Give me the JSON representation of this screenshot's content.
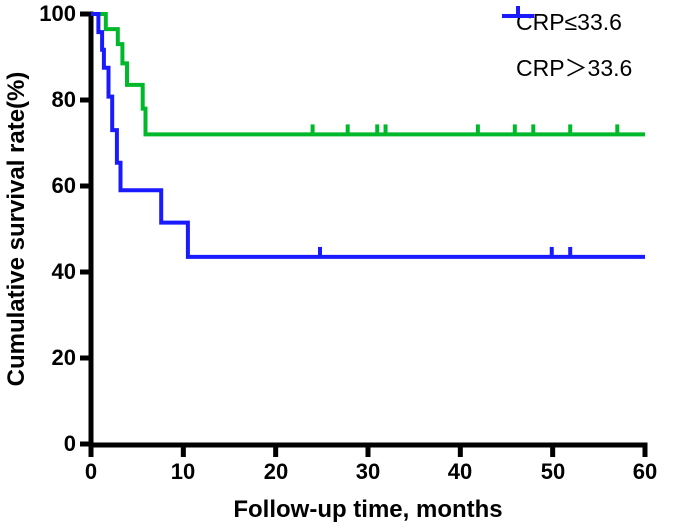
{
  "chart_data": {
    "type": "line",
    "subtype": "kaplan-meier-step-curves",
    "title": "",
    "xlabel": "Follow-up time, months",
    "ylabel": "Cumulative survival rate(%)",
    "xlim": [
      0,
      60
    ],
    "ylim": [
      0,
      100
    ],
    "x_ticks": [
      0,
      10,
      20,
      30,
      40,
      50,
      60
    ],
    "y_ticks": [
      0,
      20,
      40,
      60,
      80,
      100
    ],
    "x_tick_labels": [
      "0",
      "10",
      "20",
      "30",
      "40",
      "50",
      "60"
    ],
    "y_tick_labels": [
      "0",
      "20",
      "40",
      "60",
      "80",
      "100"
    ],
    "grid": false,
    "legend_position": "top-right",
    "axis_color": "#000000",
    "series": [
      {
        "name": "CRP≤33.6",
        "color": "#00b92b",
        "final_survival_pct": 72,
        "steps": [
          [
            0,
            100
          ],
          [
            1.6,
            100
          ],
          [
            1.6,
            96.5
          ],
          [
            2.9,
            96.5
          ],
          [
            2.9,
            93
          ],
          [
            3.4,
            93
          ],
          [
            3.4,
            88.5
          ],
          [
            3.9,
            88.5
          ],
          [
            3.9,
            83.5
          ],
          [
            5.6,
            83.5
          ],
          [
            5.6,
            78
          ],
          [
            5.9,
            78
          ],
          [
            5.9,
            72
          ],
          [
            60,
            72
          ]
        ],
        "censor_marks": [
          [
            24,
            72
          ],
          [
            27.8,
            72
          ],
          [
            31,
            72
          ],
          [
            31.9,
            72
          ],
          [
            41.9,
            72
          ],
          [
            45.9,
            72
          ],
          [
            47.9,
            72
          ],
          [
            51.9,
            72
          ],
          [
            57,
            72
          ]
        ]
      },
      {
        "name": "CRP＞33.6",
        "color": "#1a1aff",
        "final_survival_pct": 43.5,
        "steps": [
          [
            0,
            100
          ],
          [
            0.8,
            100
          ],
          [
            0.8,
            95.8
          ],
          [
            1.2,
            95.8
          ],
          [
            1.2,
            91.7
          ],
          [
            1.4,
            91.7
          ],
          [
            1.4,
            87.5
          ],
          [
            1.9,
            87.5
          ],
          [
            1.9,
            80.8
          ],
          [
            2.3,
            80.8
          ],
          [
            2.3,
            73
          ],
          [
            2.8,
            73
          ],
          [
            2.8,
            65.4
          ],
          [
            3.2,
            65.4
          ],
          [
            3.2,
            59
          ],
          [
            7.6,
            59
          ],
          [
            7.6,
            51.5
          ],
          [
            10.5,
            51.5
          ],
          [
            10.5,
            43.5
          ],
          [
            60,
            43.5
          ]
        ],
        "censor_marks": [
          [
            24.8,
            43.5
          ],
          [
            49.9,
            43.5
          ],
          [
            51.9,
            43.5
          ]
        ]
      }
    ]
  }
}
